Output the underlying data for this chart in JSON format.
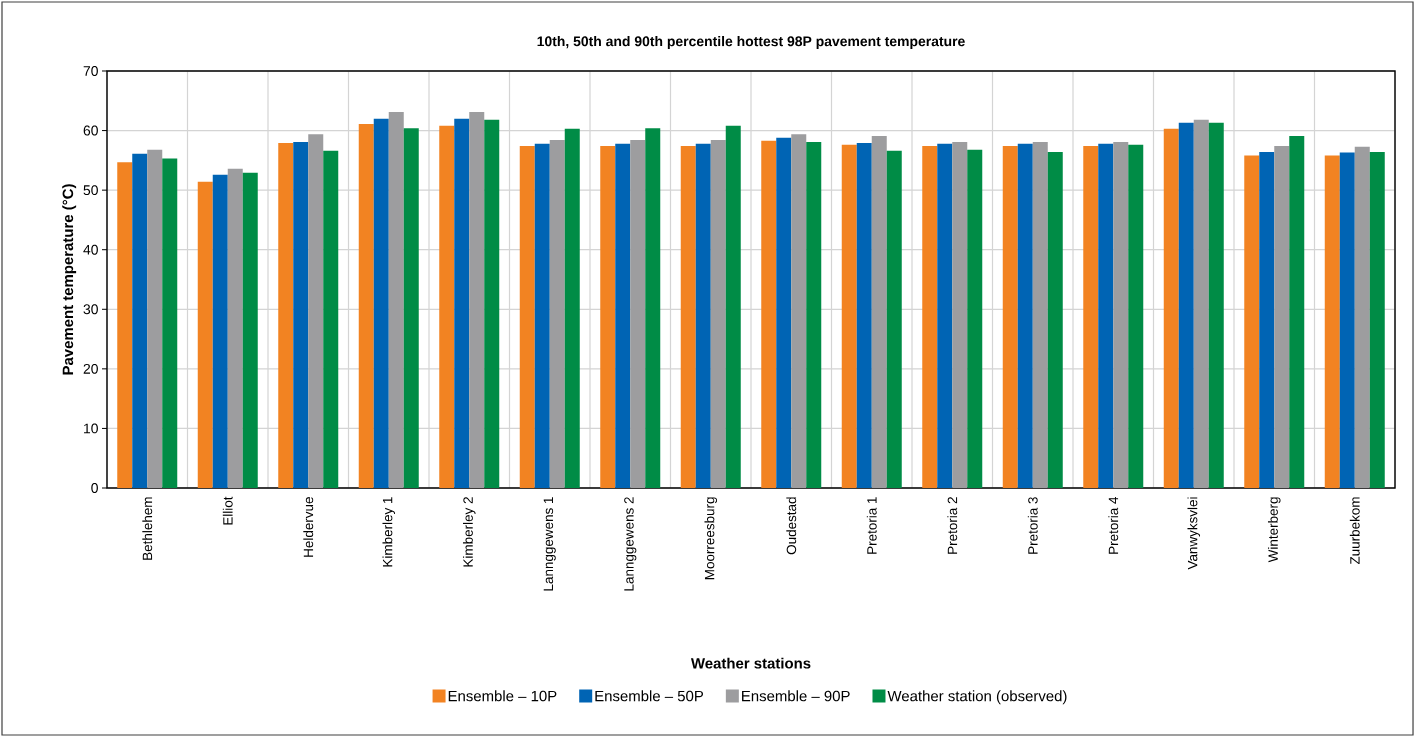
{
  "chart_data": {
    "type": "bar",
    "title": "10th, 50th and 90th percentile hottest 98P pavement temperature",
    "xlabel": "Weather stations",
    "ylabel": "Pavement temperature (°C)",
    "categories": [
      "Bethlehem",
      "Elliot",
      "Heldervue",
      "Kimberley 1",
      "Kimberley 2",
      "Lannggewens 1",
      "Lannggewens 2",
      "Moorreesburg",
      "Oudestad",
      "Pretoria 1",
      "Pretoria 2",
      "Pretoria 3",
      "Pretoria 4",
      "Vanwyksvlei",
      "Winterberg",
      "Zuurbekom"
    ],
    "series": [
      {
        "name": "Ensemble – 10P",
        "color": "#f28322",
        "values": [
          54.7,
          51.4,
          57.9,
          61.1,
          60.8,
          57.4,
          57.4,
          57.4,
          58.3,
          57.6,
          57.4,
          57.4,
          57.4,
          60.3,
          55.8,
          55.8
        ]
      },
      {
        "name": "Ensemble – 50P",
        "color": "#0064b4",
        "values": [
          56.1,
          52.6,
          58.1,
          62.0,
          62.0,
          57.8,
          57.8,
          57.8,
          58.8,
          57.9,
          57.8,
          57.8,
          57.8,
          61.3,
          56.4,
          56.3
        ]
      },
      {
        "name": "Ensemble – 90P",
        "color": "#9d9d9f",
        "values": [
          56.8,
          53.6,
          59.4,
          63.1,
          63.1,
          58.4,
          58.4,
          58.4,
          59.4,
          59.1,
          58.1,
          58.1,
          58.1,
          61.8,
          57.4,
          57.3
        ]
      },
      {
        "name": "Weather station (observed)",
        "color": "#008c46",
        "values": [
          55.3,
          52.9,
          56.6,
          60.4,
          61.8,
          60.3,
          60.4,
          60.8,
          58.1,
          56.6,
          56.8,
          56.4,
          57.6,
          61.3,
          59.1,
          56.4
        ]
      }
    ],
    "ylim": [
      0,
      70
    ],
    "yticks": [
      0,
      10,
      20,
      30,
      40,
      50,
      60,
      70
    ],
    "grid": true,
    "legend": "bottom"
  }
}
